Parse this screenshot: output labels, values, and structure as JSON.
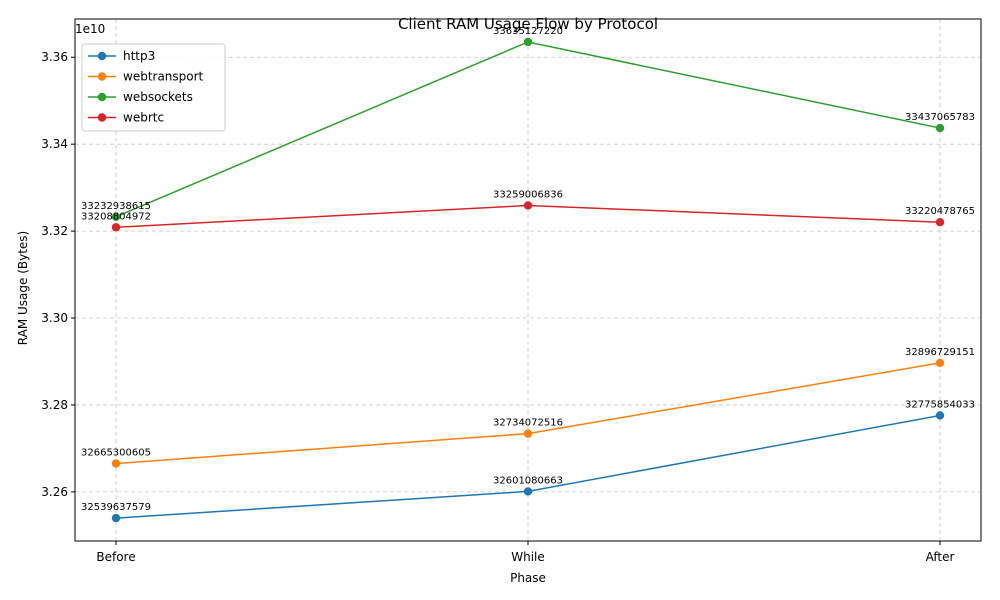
{
  "chart_data": {
    "type": "line",
    "title": "Client RAM Usage Flow by Protocol",
    "xlabel": "Phase",
    "ylabel": "RAM Usage (Bytes)",
    "y_scale_label": "1e10",
    "categories": [
      "Before",
      "While",
      "After"
    ],
    "ylim": [
      32487000000,
      33688000000
    ],
    "yticks": [
      32600000000,
      32800000000,
      33000000000,
      33200000000,
      33400000000,
      33600000000
    ],
    "ytick_labels": [
      "3.26",
      "3.28",
      "3.30",
      "3.32",
      "3.34",
      "3.36"
    ],
    "grid": true,
    "legend_position": "top-left",
    "series": [
      {
        "name": "http3",
        "color": "#1f77b4",
        "values": [
          32539637579,
          32601080663,
          32775854033
        ],
        "labels": [
          "32539637579",
          "32601080663",
          "32775854033"
        ]
      },
      {
        "name": "webtransport",
        "color": "#ff7f0e",
        "values": [
          32665300605,
          32734072516,
          32896729151
        ],
        "labels": [
          "32665300605",
          "32734072516",
          "32896729151"
        ]
      },
      {
        "name": "websockets",
        "color": "#2ca02c",
        "values": [
          33232938615,
          33635127220,
          33437065783
        ],
        "labels": [
          "33232938615",
          "33635127220",
          "33437065783"
        ]
      },
      {
        "name": "webrtc",
        "color": "#d62728",
        "values": [
          33208804972,
          33259006836,
          33220478765
        ],
        "labels": [
          "33208804972",
          "33259006836",
          "33220478765"
        ]
      }
    ]
  }
}
